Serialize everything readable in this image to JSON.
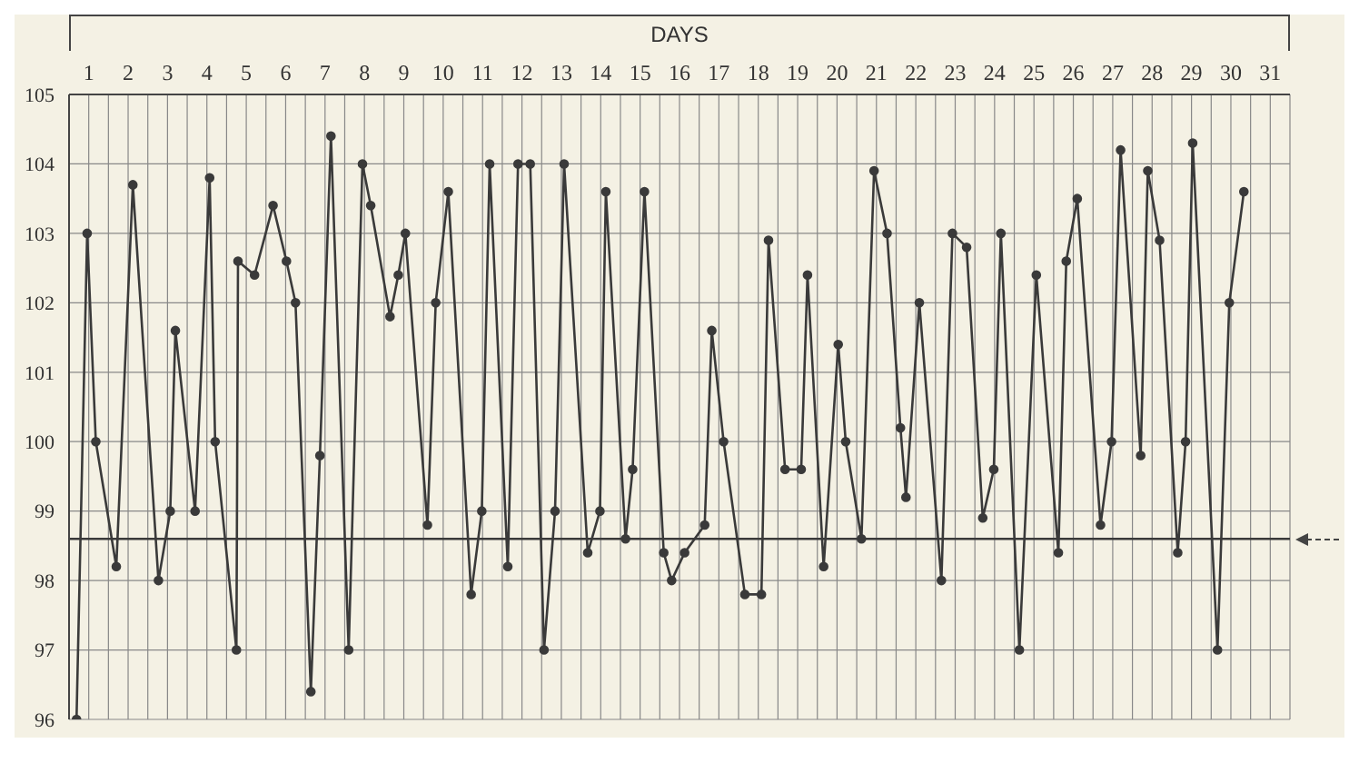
{
  "chart_data": {
    "type": "line",
    "xlabel": "DAYS",
    "x": [
      0.19,
      0.46,
      0.68,
      1.2,
      1.62,
      2.27,
      2.57,
      2.7,
      3.2,
      3.57,
      3.71,
      4.25,
      4.29,
      4.71,
      5.18,
      5.52,
      5.75,
      6.14,
      6.37,
      6.65,
      7.1,
      7.45,
      7.66,
      8.15,
      8.36,
      8.54,
      9.1,
      9.31,
      9.63,
      10.21,
      10.48,
      10.68,
      11.14,
      11.4,
      11.71,
      12.06,
      12.34,
      12.57,
      13.17,
      13.48,
      13.63,
      14.13,
      14.31,
      14.61,
      15.1,
      15.3,
      15.63,
      16.14,
      16.32,
      16.62,
      17.16,
      17.58,
      17.76,
      18.18,
      18.59,
      18.75,
      19.16,
      19.53,
      19.72,
      20.12,
      20.44,
      20.77,
      21.11,
      21.25,
      21.59,
      22.15,
      22.43,
      22.79,
      23.2,
      23.48,
      23.66,
      24.13,
      24.56,
      25.12,
      25.32,
      25.6,
      26.19,
      26.47,
      26.7,
      27.21,
      27.39,
      27.69,
      28.15,
      28.35,
      28.53,
      29.16,
      29.46,
      29.83
    ],
    "series": [
      {
        "color": "#3a3a3a",
        "values": [
          96.0,
          103.0,
          100.0,
          98.2,
          103.7,
          98.0,
          99.0,
          101.6,
          99.0,
          103.8,
          100.0,
          97.0,
          102.6,
          102.4,
          103.4,
          102.6,
          102.0,
          96.4,
          99.8,
          104.4,
          97.0,
          104.0,
          103.4,
          101.8,
          102.4,
          103.0,
          98.8,
          102.0,
          103.6,
          97.8,
          99.0,
          104.0,
          98.2,
          104.0,
          104.0,
          97.0,
          99.0,
          104.0,
          98.4,
          99.0,
          103.6,
          98.6,
          99.6,
          103.6,
          98.4,
          98.0,
          98.4,
          98.8,
          101.6,
          100.0,
          97.8,
          97.8,
          102.9,
          99.6,
          99.6,
          102.4,
          98.2,
          101.4,
          100.0,
          98.6,
          103.9,
          103.0,
          100.2,
          99.2,
          102.0,
          98.0,
          103.0,
          102.8,
          98.9,
          99.6,
          103.0,
          97.0,
          102.4,
          98.4,
          102.6,
          103.5,
          98.8,
          100.0,
          104.2,
          99.8,
          103.9,
          102.9,
          98.4,
          100.0,
          104.3,
          97.0,
          102.0,
          103.6
        ]
      }
    ],
    "xlim": [
      0,
      31
    ],
    "xticks": [
      {
        "value": 0,
        "label": null
      },
      {
        "value": 0.5,
        "label": "1"
      },
      {
        "value": 1,
        "label": null
      },
      {
        "value": 1.5,
        "label": "2"
      },
      {
        "value": 2,
        "label": null
      },
      {
        "value": 2.5,
        "label": "3"
      },
      {
        "value": 3,
        "label": null
      },
      {
        "value": 3.5,
        "label": "4"
      },
      {
        "value": 4,
        "label": null
      },
      {
        "value": 4.5,
        "label": "5"
      },
      {
        "value": 5,
        "label": null
      },
      {
        "value": 5.5,
        "label": "6"
      },
      {
        "value": 6,
        "label": null
      },
      {
        "value": 6.5,
        "label": "7"
      },
      {
        "value": 7,
        "label": null
      },
      {
        "value": 7.5,
        "label": "8"
      },
      {
        "value": 8,
        "label": null
      },
      {
        "value": 8.5,
        "label": "9"
      },
      {
        "value": 9,
        "label": null
      },
      {
        "value": 9.5,
        "label": "10"
      },
      {
        "value": 10,
        "label": null
      },
      {
        "value": 10.5,
        "label": "11"
      },
      {
        "value": 11,
        "label": null
      },
      {
        "value": 11.5,
        "label": "12"
      },
      {
        "value": 12,
        "label": null
      },
      {
        "value": 12.5,
        "label": "13"
      },
      {
        "value": 13,
        "label": null
      },
      {
        "value": 13.5,
        "label": "14"
      },
      {
        "value": 14,
        "label": null
      },
      {
        "value": 14.5,
        "label": "15"
      },
      {
        "value": 15,
        "label": null
      },
      {
        "value": 15.5,
        "label": "16"
      },
      {
        "value": 16,
        "label": null
      },
      {
        "value": 16.5,
        "label": "17"
      },
      {
        "value": 17,
        "label": null
      },
      {
        "value": 17.5,
        "label": "18"
      },
      {
        "value": 18,
        "label": null
      },
      {
        "value": 18.5,
        "label": "19"
      },
      {
        "value": 19,
        "label": null
      },
      {
        "value": 19.5,
        "label": "20"
      },
      {
        "value": 20,
        "label": null
      },
      {
        "value": 20.5,
        "label": "21"
      },
      {
        "value": 21,
        "label": null
      },
      {
        "value": 21.5,
        "label": "22"
      },
      {
        "value": 22,
        "label": null
      },
      {
        "value": 22.5,
        "label": "23"
      },
      {
        "value": 23,
        "label": null
      },
      {
        "value": 23.5,
        "label": "24"
      },
      {
        "value": 24,
        "label": null
      },
      {
        "value": 24.5,
        "label": "25"
      },
      {
        "value": 25,
        "label": null
      },
      {
        "value": 25.5,
        "label": "26"
      },
      {
        "value": 26,
        "label": null
      },
      {
        "value": 26.5,
        "label": "27"
      },
      {
        "value": 27,
        "label": null
      },
      {
        "value": 27.5,
        "label": "28"
      },
      {
        "value": 28,
        "label": null
      },
      {
        "value": 28.5,
        "label": "29"
      },
      {
        "value": 29,
        "label": null
      },
      {
        "value": 29.5,
        "label": "30"
      },
      {
        "value": 30,
        "label": null
      },
      {
        "value": 30.5,
        "label": "31"
      },
      {
        "value": 31,
        "label": null
      }
    ],
    "ylim": [
      96,
      105
    ],
    "yticks": [
      96,
      97,
      98,
      99,
      100,
      101,
      102,
      103,
      104,
      105
    ],
    "ref_lines": [
      {
        "axis": "y",
        "value": 98.6,
        "color": "#3a3a3a",
        "line_style": "solid"
      }
    ],
    "grid": true,
    "marker": "circle",
    "line_style": "solid"
  }
}
